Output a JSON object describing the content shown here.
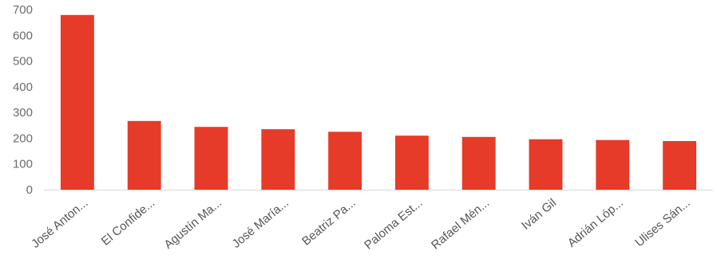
{
  "chart_data": {
    "type": "bar",
    "title": "",
    "xlabel": "",
    "ylabel": "",
    "categories": [
      "José Anton...",
      "El Confide...",
      "Agustín Ma...",
      "José María...",
      "Beatriz Pa...",
      "Paloma Est...",
      "Rafael Mén...",
      "Iván Gil",
      "Adrián Lóp...",
      "Ulises Sán..."
    ],
    "values": [
      679,
      267,
      244,
      235,
      225,
      210,
      205,
      196,
      193,
      189
    ],
    "ylim": [
      0,
      700
    ],
    "yticks": [
      0,
      100,
      200,
      300,
      400,
      500,
      600,
      700
    ],
    "bar_color": "#e63b28",
    "grid": false,
    "legend": "none"
  }
}
